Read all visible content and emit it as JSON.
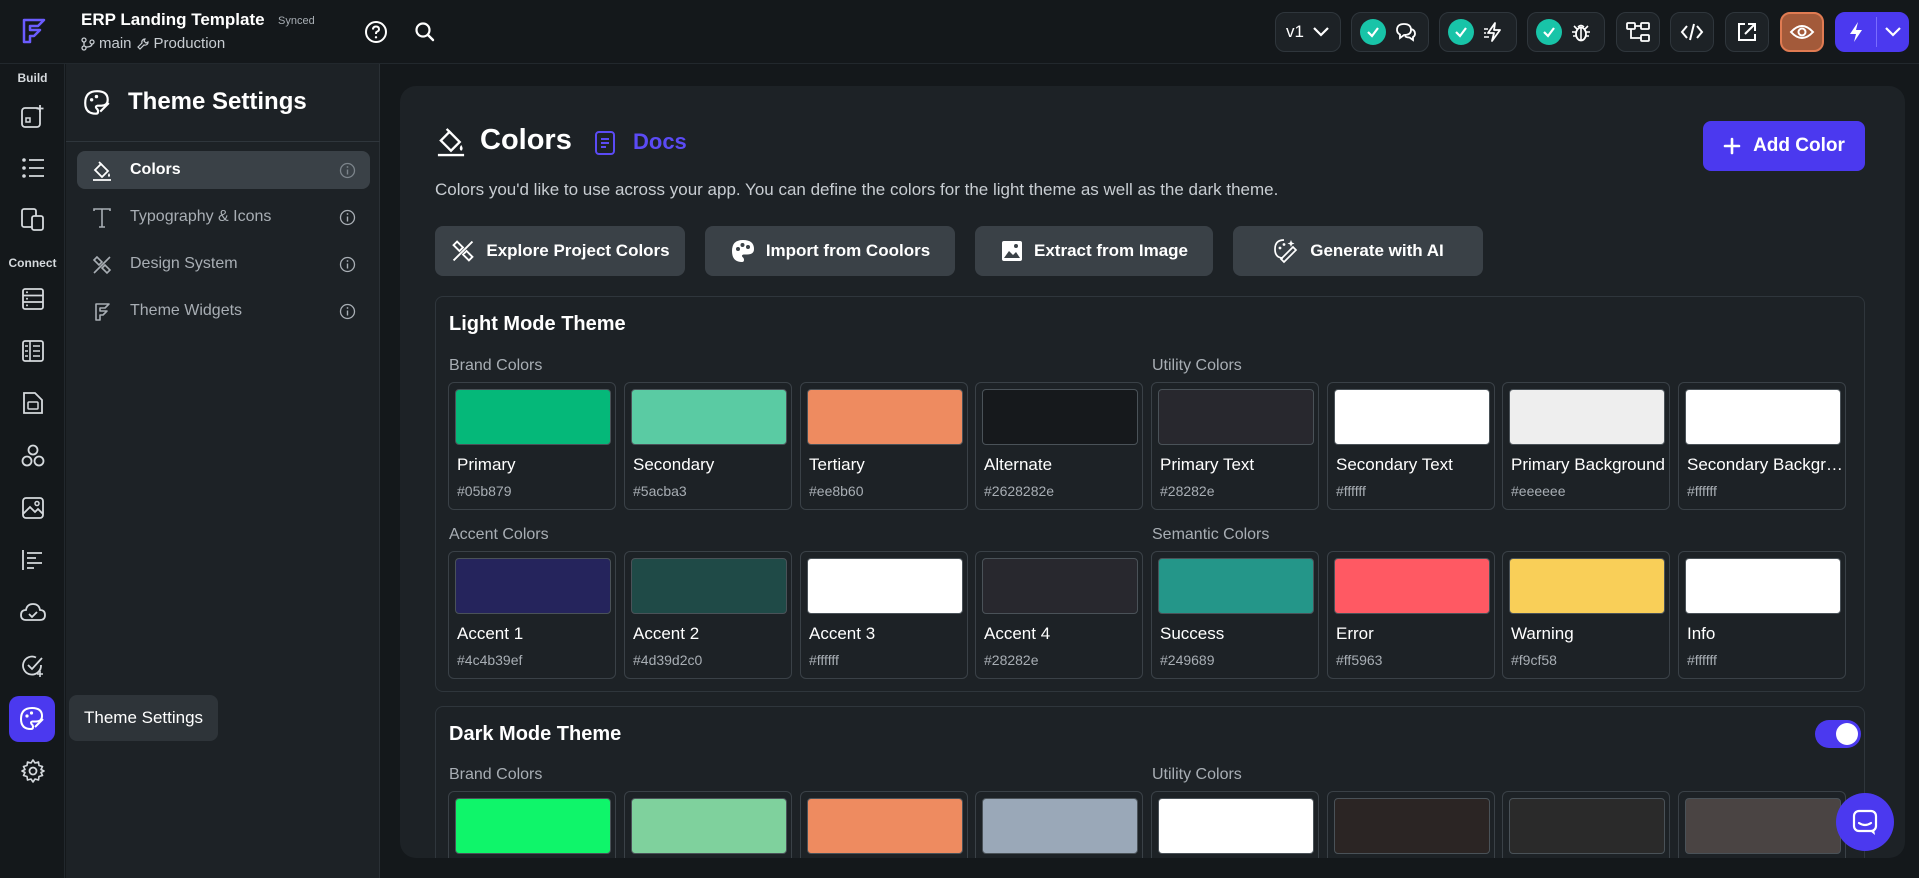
{
  "topbar": {
    "project_title": "ERP Landing Template",
    "sync_status": "Synced",
    "branch": "main",
    "environment": "Production",
    "version": "v1"
  },
  "rail": {
    "build_label": "Build",
    "connect_label": "Connect",
    "tooltip": "Theme Settings"
  },
  "panel": {
    "title": "Theme Settings",
    "items": [
      {
        "label": "Colors"
      },
      {
        "label": "Typography & Icons"
      },
      {
        "label": "Design System"
      },
      {
        "label": "Theme Widgets"
      }
    ]
  },
  "main": {
    "title": "Colors",
    "docs_label": "Docs",
    "add_color_label": "Add Color",
    "subtitle": "Colors you'd like to use across your app. You can define the colors for the light theme as well as the dark theme.",
    "actions": [
      {
        "label": "Explore Project Colors"
      },
      {
        "label": "Import from Coolors"
      },
      {
        "label": "Extract from Image"
      },
      {
        "label": "Generate with AI"
      }
    ]
  },
  "light": {
    "title": "Light Mode Theme",
    "brand_label": "Brand Colors",
    "utility_label": "Utility Colors",
    "accent_label": "Accent Colors",
    "semantic_label": "Semantic Colors",
    "brand": [
      {
        "name": "Primary",
        "hex": "#05b879",
        "color": "#05b879"
      },
      {
        "name": "Secondary",
        "hex": "#5acba3",
        "color": "#5acba3"
      },
      {
        "name": "Tertiary",
        "hex": "#ee8b60",
        "color": "#ee8b60"
      },
      {
        "name": "Alternate",
        "hex": "#2628282e",
        "color": "#16191c"
      }
    ],
    "utility": [
      {
        "name": "Primary Text",
        "hex": "#28282e",
        "color": "#28282e"
      },
      {
        "name": "Secondary Text",
        "hex": "#ffffff",
        "color": "#ffffff"
      },
      {
        "name": "Primary Background",
        "hex": "#eeeeee",
        "color": "#eeeeee"
      },
      {
        "name": "Secondary Background",
        "hex": "#ffffff",
        "color": "#ffffff"
      }
    ],
    "accent": [
      {
        "name": "Accent 1",
        "hex": "#4c4b39ef",
        "color": "#25245c"
      },
      {
        "name": "Accent 2",
        "hex": "#4d39d2c0",
        "color": "#1f4a47"
      },
      {
        "name": "Accent 3",
        "hex": "#ffffff",
        "color": "#ffffff"
      },
      {
        "name": "Accent 4",
        "hex": "#28282e",
        "color": "#28282e"
      }
    ],
    "semantic": [
      {
        "name": "Success",
        "hex": "#249689",
        "color": "#249689"
      },
      {
        "name": "Error",
        "hex": "#ff5963",
        "color": "#ff5963"
      },
      {
        "name": "Warning",
        "hex": "#f9cf58",
        "color": "#f9cf58"
      },
      {
        "name": "Info",
        "hex": "#ffffff",
        "color": "#ffffff"
      }
    ]
  },
  "dark": {
    "title": "Dark Mode Theme",
    "toggle_on": true,
    "brand_label": "Brand Colors",
    "utility_label": "Utility Colors",
    "brand_colors": [
      "#0ff56a",
      "#7fd19d",
      "#ee8b60",
      "#9aa8b8"
    ],
    "utility_colors": [
      "#ffffff",
      "#2b2524",
      "#2a2a2a",
      "#4a4443"
    ]
  },
  "colors": {
    "accent": "#4b39ef",
    "background": "#14181b",
    "surface": "#1d2226",
    "check": "#18c4a8"
  }
}
